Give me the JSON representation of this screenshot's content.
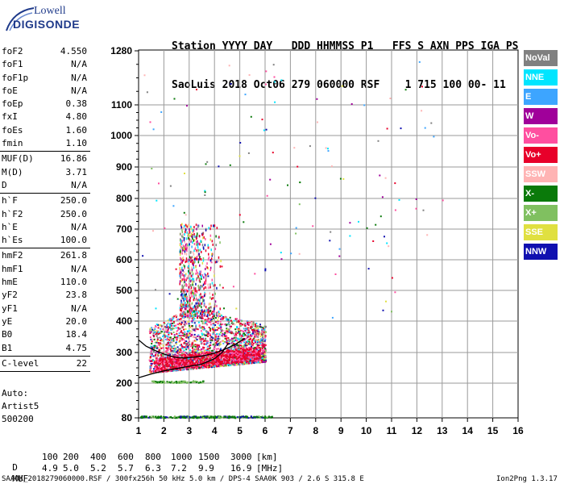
{
  "logo": {
    "line1": "Lowell",
    "line2": "DIGISONDE"
  },
  "header": {
    "line1": "Station YYYY DAY   DDD HHMMSS P1   FFS S AXN PPS IGA PS",
    "line2": "SaoLuis 2018 Oct06 279 060000 RSF    1 715 100 00- 11"
  },
  "params": [
    [
      {
        "name": "foF2",
        "value": "4.550"
      },
      {
        "name": "foF1",
        "value": "N/A"
      },
      {
        "name": "foF1p",
        "value": "N/A"
      },
      {
        "name": "foE",
        "value": "N/A"
      },
      {
        "name": "foEp",
        "value": "0.38"
      },
      {
        "name": "fxI",
        "value": "4.80"
      },
      {
        "name": "foEs",
        "value": "1.60"
      },
      {
        "name": "fmin",
        "value": "1.10"
      }
    ],
    [
      {
        "name": "MUF(D)",
        "value": "16.86"
      },
      {
        "name": "M(D)",
        "value": "3.71"
      },
      {
        "name": "D",
        "value": "N/A"
      }
    ],
    [
      {
        "name": "h`F",
        "value": "250.0"
      },
      {
        "name": "h`F2",
        "value": "250.0"
      },
      {
        "name": "h`E",
        "value": "N/A"
      },
      {
        "name": "h`Es",
        "value": "100.0"
      }
    ],
    [
      {
        "name": "hmF2",
        "value": "261.8"
      },
      {
        "name": "hmF1",
        "value": "N/A"
      },
      {
        "name": "hmE",
        "value": "110.0"
      },
      {
        "name": "yF2",
        "value": "23.8"
      },
      {
        "name": "yF1",
        "value": "N/A"
      },
      {
        "name": "yE",
        "value": "20.0"
      },
      {
        "name": "B0",
        "value": "18.4"
      },
      {
        "name": "B1",
        "value": "4.75"
      }
    ],
    [
      {
        "name": "C-level",
        "value": "22"
      }
    ]
  ],
  "auto": {
    "l1": "Auto:",
    "l2": "Artist5",
    "l3": "500200"
  },
  "legend": [
    {
      "label": "NoVal",
      "bg": "#808080",
      "fg": "#ffffff"
    },
    {
      "label": "NNE",
      "bg": "#00e5ff",
      "fg": "#ffffff"
    },
    {
      "label": "E",
      "bg": "#3da5ff",
      "fg": "#ffffff"
    },
    {
      "label": "W",
      "bg": "#a0009a",
      "fg": "#ffffff"
    },
    {
      "label": "Vo-",
      "bg": "#ff4fa0",
      "fg": "#ffffff"
    },
    {
      "label": "Vo+",
      "bg": "#e8002a",
      "fg": "#ffffff"
    },
    {
      "label": "SSW",
      "bg": "#ffb4b4",
      "fg": "#ffffff"
    },
    {
      "label": "X-",
      "bg": "#0a7a0a",
      "fg": "#ffffff"
    },
    {
      "label": "X+",
      "bg": "#80c060",
      "fg": "#ffffff"
    },
    {
      "label": "SSE",
      "bg": "#e0e040",
      "fg": "#ffffff"
    },
    {
      "label": "NNW",
      "bg": "#1010b0",
      "fg": "#ffffff"
    }
  ],
  "chart_data": {
    "type": "scatter",
    "title": "",
    "xlabel": "",
    "ylabel": "",
    "xlim": [
      1,
      16
    ],
    "ylim_ticks": [
      80,
      200,
      300,
      400,
      500,
      600,
      700,
      800,
      900,
      1000,
      1100,
      1280
    ],
    "x_ticks": [
      1,
      2,
      3,
      4,
      5,
      6,
      7,
      8,
      9,
      10,
      11,
      12,
      13,
      14,
      15,
      16
    ],
    "y_ticks": [
      80,
      200,
      300,
      400,
      500,
      600,
      700,
      800,
      900,
      1000,
      1100,
      1280
    ],
    "grid": true,
    "ordinary_trace": {
      "name": "F2 trace",
      "color": "#000000",
      "x": [
        1.0,
        1.5,
        2.0,
        2.5,
        3.0,
        3.5,
        4.0,
        4.3,
        4.55
      ],
      "y": [
        218,
        230,
        240,
        248,
        255,
        262,
        280,
        300,
        330
      ]
    },
    "extraordinary_trace": {
      "name": "F2 x-trace",
      "color": "#000000",
      "x": [
        1.0,
        1.3,
        1.7,
        2.0,
        2.4,
        2.8,
        3.2,
        3.6,
        4.0,
        4.4,
        4.8,
        5.2
      ],
      "y": [
        340,
        320,
        305,
        295,
        285,
        282,
        285,
        290,
        298,
        310,
        325,
        345
      ]
    },
    "echo_regions": [
      {
        "label": "Es band",
        "x_range": [
          1.05,
          6.3
        ],
        "y_range": [
          82,
          88
        ]
      },
      {
        "label": "E band",
        "x_range": [
          1.5,
          3.6
        ],
        "y_range": [
          203,
          210
        ]
      },
      {
        "label": "F cloud",
        "x_range": [
          1.4,
          6.0
        ],
        "y_range": [
          220,
          470
        ]
      },
      {
        "label": "spread-F",
        "x_range": [
          2.5,
          4.3
        ],
        "y_range": [
          450,
          720
        ]
      }
    ]
  },
  "footer": {
    "d_label": "D",
    "d_values": [
      "100",
      "200",
      "400",
      "600",
      "800",
      "1000",
      "1500",
      "3000",
      "[km]"
    ],
    "muf_label": "MUF",
    "muf_values": [
      "4.9",
      "5.0",
      "5.2",
      "5.7",
      "6.3",
      "7.2",
      "9.9",
      "16.9",
      "[MHz]"
    ],
    "file_line": "SAA0K_2018279060000.RSF / 300fx256h 50 kHz 5.0 km / DPS-4 SAA0K 903 / 2.6 S 315.8 E",
    "version": "Ion2Png 1.3.17"
  }
}
